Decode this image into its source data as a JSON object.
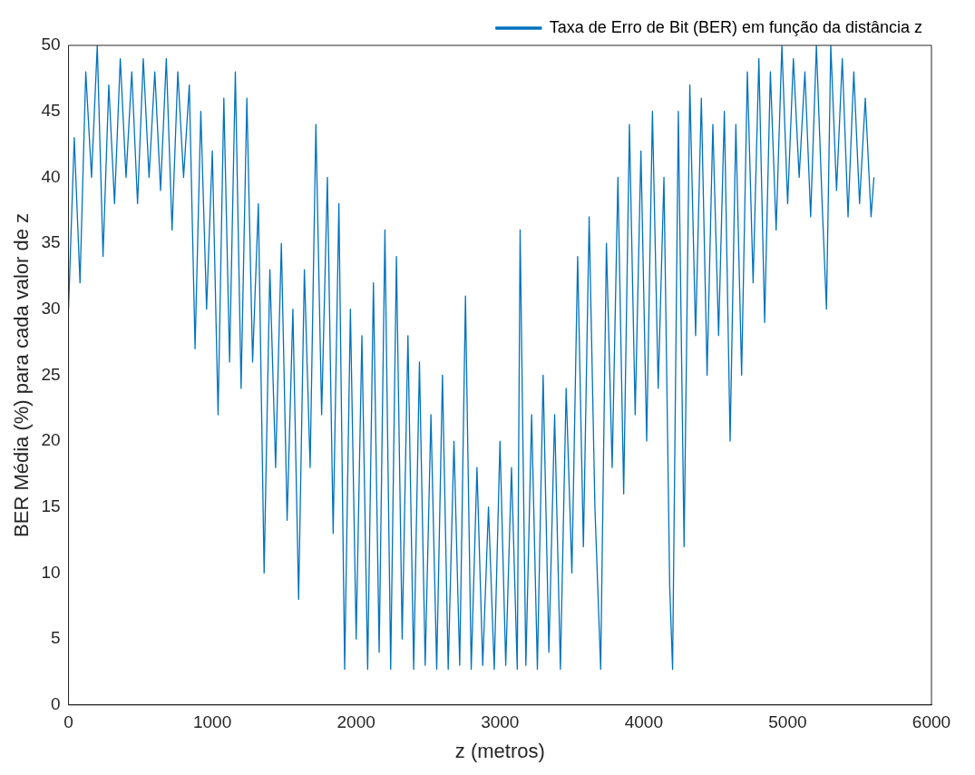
{
  "chart_data": {
    "type": "line",
    "xlabel": "z (metros)",
    "ylabel": "BER Média (%) para cada valor de z",
    "x": [
      0,
      40,
      80,
      120,
      160,
      200,
      240,
      280,
      320,
      360,
      400,
      440,
      480,
      520,
      560,
      600,
      640,
      680,
      720,
      760,
      800,
      840,
      880,
      920,
      960,
      1000,
      1040,
      1080,
      1120,
      1160,
      1200,
      1240,
      1280,
      1320,
      1360,
      1400,
      1440,
      1480,
      1520,
      1560,
      1600,
      1640,
      1680,
      1720,
      1760,
      1800,
      1840,
      1880,
      1920,
      1960,
      2000,
      2040,
      2080,
      2120,
      2160,
      2200,
      2240,
      2280,
      2320,
      2360,
      2400,
      2440,
      2480,
      2520,
      2560,
      2600,
      2640,
      2680,
      2720,
      2760,
      2800,
      2840,
      2880,
      2920,
      2960,
      3000,
      3040,
      3080,
      3120,
      3140,
      3180,
      3220,
      3260,
      3300,
      3340,
      3380,
      3420,
      3460,
      3500,
      3540,
      3580,
      3620,
      3660,
      3700,
      3740,
      3780,
      3820,
      3860,
      3900,
      3940,
      3980,
      4020,
      4060,
      4100,
      4140,
      4180,
      4200,
      4240,
      4280,
      4320,
      4360,
      4400,
      4440,
      4480,
      4520,
      4560,
      4600,
      4640,
      4680,
      4720,
      4760,
      4800,
      4840,
      4880,
      4920,
      4960,
      5000,
      5040,
      5080,
      5120,
      5160,
      5200,
      5240,
      5270,
      5300,
      5340,
      5380,
      5420,
      5460,
      5500,
      5540,
      5580,
      5600
    ],
    "series": [
      {
        "name": "Taxa de Erro de Bit (BER) em função da distância z",
        "color": "#0072bd",
        "values": [
          30,
          43,
          32,
          48,
          40,
          50,
          34,
          47,
          38,
          49,
          40,
          48,
          38,
          49,
          40,
          48,
          39,
          49,
          36,
          48,
          40,
          47,
          27,
          45,
          30,
          42,
          22,
          46,
          26,
          48,
          24,
          46,
          26,
          38,
          10,
          33,
          18,
          35,
          14,
          30,
          8,
          33,
          18,
          44,
          22,
          40,
          13,
          38,
          2.7,
          30,
          5,
          28,
          2.7,
          32,
          4,
          36,
          2.7,
          34,
          5,
          28,
          2.7,
          26,
          3,
          22,
          2.7,
          25,
          2.7,
          20,
          3,
          31,
          2.7,
          18,
          3,
          15,
          2.7,
          20,
          3,
          18,
          2.7,
          36,
          3,
          22,
          2.7,
          25,
          4,
          22,
          2.7,
          24,
          10,
          34,
          12,
          37,
          15,
          2.7,
          35,
          18,
          40,
          16,
          44,
          22,
          42,
          20,
          45,
          24,
          40,
          9,
          2.7,
          45,
          12,
          47,
          28,
          46,
          25,
          44,
          28,
          45,
          20,
          44,
          25,
          48,
          32,
          49,
          29,
          48,
          36,
          50,
          38,
          49,
          40,
          48,
          37,
          50,
          38,
          30,
          50,
          39,
          49,
          37,
          48,
          38,
          46,
          37,
          40
        ]
      }
    ],
    "xlim": [
      0,
      6000
    ],
    "xticks": [
      0,
      1000,
      2000,
      3000,
      4000,
      5000,
      6000
    ],
    "ylim": [
      0,
      50
    ],
    "yticks": [
      0,
      5,
      10,
      15,
      20,
      25,
      30,
      35,
      40,
      45,
      50
    ],
    "grid": false,
    "legend": "top right",
    "marker": "none",
    "line_style": "solid"
  }
}
